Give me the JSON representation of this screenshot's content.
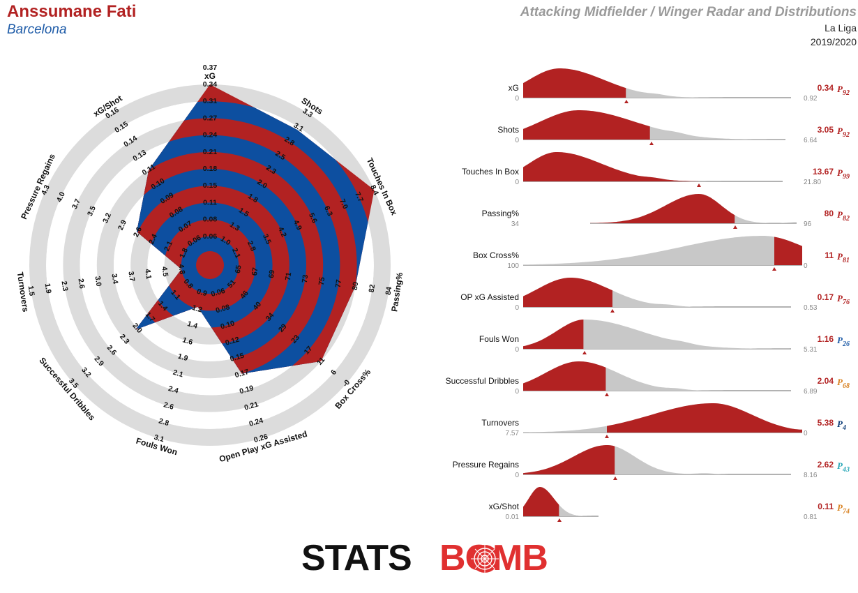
{
  "header": {
    "player_name": "Anssumane Fati",
    "team_name": "Barcelona",
    "title": "Attacking Midfielder / Winger Radar and Distributions",
    "league": "La Liga",
    "season": "2019/2020"
  },
  "colors": {
    "player_name": "#b22222",
    "team_name": "#1f5ca8",
    "radar_red": "#b22222",
    "radar_blue": "#0d4fa0",
    "ring_grey": "#dcdcdc",
    "dist_grey": "#c8c8c8",
    "axis_line": "#444444"
  },
  "chart_data": [
    {
      "type": "radar",
      "axes": [
        {
          "label": "xG",
          "value": 0.34,
          "ticks": [
            "0.06",
            "0.08",
            "0.11",
            "0.15",
            "0.18",
            "0.21",
            "0.24",
            "0.27",
            "0.31",
            "0.34",
            "0.37"
          ]
        },
        {
          "label": "Shots",
          "value": 3.05,
          "ticks": [
            "1.0",
            "1.3",
            "1.5",
            "1.8",
            "2.0",
            "2.3",
            "2.5",
            "2.8",
            "3.1",
            "3.3"
          ]
        },
        {
          "label": "Touches In Box",
          "value": 13.67,
          "ticks": [
            "2.1",
            "2.8",
            "3.5",
            "4.2",
            "4.9",
            "5.6",
            "6.3",
            "7.0",
            "7.7",
            "8.4"
          ]
        },
        {
          "label": "Passing%",
          "value": 80,
          "ticks": [
            "65",
            "67",
            "69",
            "71",
            "73",
            "75",
            "77",
            "80",
            "82",
            "84"
          ]
        },
        {
          "label": "Box Cross%",
          "value": 11,
          "ticks": [
            "51",
            "46",
            "40",
            "34",
            "29",
            "23",
            "17",
            "11",
            "6",
            "-0"
          ]
        },
        {
          "label": "Open Play xG Assisted",
          "value": 0.17,
          "ticks": [
            "0.06",
            "0.08",
            "0.10",
            "0.12",
            "0.15",
            "0.17",
            "0.19",
            "0.21",
            "0.24",
            "0.26"
          ]
        },
        {
          "label": "Fouls Won",
          "value": 1.16,
          "ticks": [
            "0.9",
            "1.2",
            "1.4",
            "1.6",
            "1.9",
            "2.1",
            "2.4",
            "2.6",
            "2.8",
            "3.1"
          ]
        },
        {
          "label": "Successful Dribbles",
          "value": 2.04,
          "ticks": [
            "0.8",
            "1.1",
            "1.4",
            "1.7",
            "2.0",
            "2.3",
            "2.6",
            "2.9",
            "3.2",
            "3.5"
          ]
        },
        {
          "label": "Turnovers",
          "value": 5.38,
          "ticks": [
            "4.8",
            "4.5",
            "4.1",
            "3.7",
            "3.4",
            "3.0",
            "2.6",
            "2.3",
            "1.9",
            "1.5"
          ]
        },
        {
          "label": "Pressure Regains",
          "value": 2.62,
          "ticks": [
            "1.8",
            "2.1",
            "2.4",
            "2.6",
            "2.9",
            "3.2",
            "3.5",
            "3.7",
            "4.0",
            "4.3"
          ]
        },
        {
          "label": "xG/Shot",
          "value": 0.11,
          "ticks": [
            "0.06",
            "0.07",
            "0.08",
            "0.09",
            "0.10",
            "0.11",
            "0.13",
            "0.14",
            "0.15",
            "0.16"
          ]
        }
      ]
    },
    {
      "type": "area",
      "metrics": [
        {
          "label": "xG",
          "value": "0.34",
          "percentile": "92",
          "pct_color": "#b22222",
          "min": "0",
          "max": "0.92",
          "dir": 1,
          "x0": 0.0,
          "x1": 0.96,
          "split": 0.37,
          "peak": 0.13,
          "w1": 0.11,
          "w2": 0.16
        },
        {
          "label": "Shots",
          "value": "3.05",
          "percentile": "92",
          "pct_color": "#b22222",
          "min": "0",
          "max": "6.64",
          "dir": 1,
          "x0": 0.0,
          "x1": 0.94,
          "split": 0.46,
          "peak": 0.2,
          "w1": 0.14,
          "w2": 0.2
        },
        {
          "label": "Touches In Box",
          "value": "13.67",
          "percentile": "99",
          "pct_color": "#b22222",
          "min": "0",
          "max": "21.80",
          "dir": 1,
          "x0": 0.0,
          "x1": 0.93,
          "split": 0.63,
          "peak": 0.12,
          "w1": 0.1,
          "w2": 0.16
        },
        {
          "label": "Passing%",
          "value": "80",
          "percentile": "82",
          "pct_color": "#b22222",
          "min": "34",
          "max": "96",
          "dir": 1,
          "x0": 0.24,
          "x1": 0.98,
          "split": 0.76,
          "peak": 0.63,
          "w1": 0.12,
          "w2": 0.08
        },
        {
          "label": "Box Cross%",
          "value": "11",
          "percentile": "81",
          "pct_color": "#b22222",
          "min": "100",
          "max": "0",
          "dir": -1,
          "x0": 0.0,
          "x1": 1.0,
          "split": 0.9,
          "peak": 0.86,
          "w1": 0.3,
          "w2": 0.15
        },
        {
          "label": "OP xG Assisted",
          "value": "0.17",
          "percentile": "76",
          "pct_color": "#b22222",
          "min": "0",
          "max": "0.53",
          "dir": 1,
          "x0": 0.0,
          "x1": 0.96,
          "split": 0.32,
          "peak": 0.17,
          "w1": 0.12,
          "w2": 0.14
        },
        {
          "label": "Fouls Won",
          "value": "1.16",
          "percentile": "26",
          "pct_color": "#1f5ca8",
          "min": "0",
          "max": "5.31",
          "dir": 1,
          "x0": 0.0,
          "x1": 0.96,
          "split": 0.22,
          "peak": 0.22,
          "w1": 0.1,
          "w2": 0.2
        },
        {
          "label": "Successful Dribbles",
          "value": "2.04",
          "percentile": "68",
          "pct_color": "#d98324",
          "min": "0",
          "max": "6.89",
          "dir": 1,
          "x0": 0.0,
          "x1": 0.96,
          "split": 0.3,
          "peak": 0.2,
          "w1": 0.12,
          "w2": 0.14
        },
        {
          "label": "Turnovers",
          "value": "5.38",
          "percentile": "4",
          "pct_color": "#0d3d78",
          "min": "7.57",
          "max": "0",
          "dir": -1,
          "x0": 0.0,
          "x1": 1.0,
          "split": 0.3,
          "peak": 0.68,
          "w1": 0.22,
          "w2": 0.14
        },
        {
          "label": "Pressure Regains",
          "value": "2.62",
          "percentile": "43",
          "pct_color": "#2aa8b8",
          "min": "0",
          "max": "8.16",
          "dir": 1,
          "x0": 0.0,
          "x1": 0.96,
          "split": 0.33,
          "peak": 0.3,
          "w1": 0.12,
          "w2": 0.1
        },
        {
          "label": "xG/Shot",
          "value": "0.11",
          "percentile": "74",
          "pct_color": "#d98324",
          "min": "0.01",
          "max": "0.81",
          "dir": 1,
          "x0": 0.0,
          "x1": 0.27,
          "split": 0.13,
          "peak": 0.06,
          "w1": 0.04,
          "w2": 0.05
        }
      ]
    }
  ],
  "logo": {
    "text_black": "STATS",
    "text_red": "BOMB"
  }
}
